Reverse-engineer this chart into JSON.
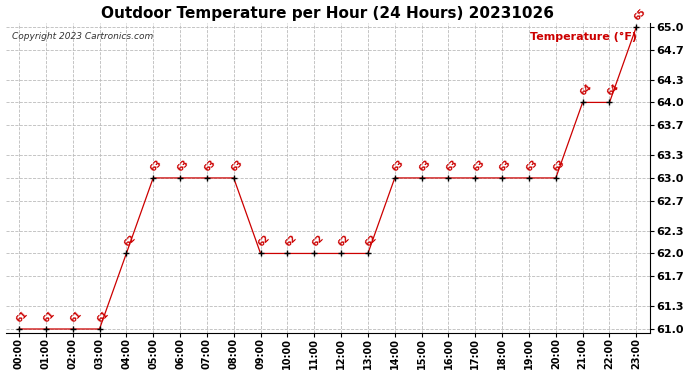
{
  "title": "Outdoor Temperature per Hour (24 Hours) 20231026",
  "copyright": "Copyright 2023 Cartronics.com",
  "legend_label": "Temperature (°F)",
  "hours": [
    "00:00",
    "01:00",
    "02:00",
    "03:00",
    "04:00",
    "05:00",
    "06:00",
    "07:00",
    "08:00",
    "09:00",
    "10:00",
    "11:00",
    "12:00",
    "13:00",
    "14:00",
    "15:00",
    "16:00",
    "17:00",
    "18:00",
    "19:00",
    "20:00",
    "21:00",
    "22:00",
    "23:00"
  ],
  "temperatures": [
    61,
    61,
    61,
    61,
    62,
    63,
    63,
    63,
    63,
    62,
    62,
    62,
    62,
    62,
    63,
    63,
    63,
    63,
    63,
    63,
    63,
    64,
    64,
    65
  ],
  "ylim": [
    61.0,
    65.0
  ],
  "yticks": [
    61.0,
    61.3,
    61.7,
    62.0,
    62.3,
    62.7,
    63.0,
    63.3,
    63.7,
    64.0,
    64.3,
    64.7,
    65.0
  ],
  "line_color": "#cc0000",
  "marker_color": "#000000",
  "background_color": "#ffffff",
  "grid_color": "#bbbbbb",
  "title_fontsize": 11,
  "annotation_fontsize": 6.5,
  "tick_fontsize": 7,
  "legend_fontsize": 8,
  "copyright_fontsize": 6.5,
  "ytick_fontsize": 8
}
